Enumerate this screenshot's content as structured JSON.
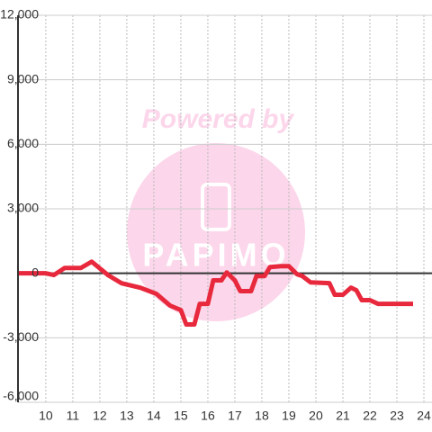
{
  "chart_data": {
    "type": "line",
    "watermark": {
      "text": "Powered by",
      "logo": "PAPIMO"
    },
    "x": [
      9.0,
      10.0,
      10.3,
      10.7,
      11.3,
      11.7,
      12.3,
      12.8,
      13.5,
      14.1,
      14.6,
      15.0,
      15.2,
      15.5,
      15.7,
      16.0,
      16.2,
      16.5,
      16.7,
      17.0,
      17.2,
      17.6,
      17.8,
      18.1,
      18.3,
      18.7,
      19.0,
      19.3,
      19.5,
      19.8,
      20.5,
      20.7,
      21.0,
      21.3,
      21.5,
      21.7,
      22.0,
      22.3,
      23.6
    ],
    "series": [
      {
        "name": "value",
        "color": "#e8283c",
        "values": [
          0,
          0,
          -80,
          250,
          250,
          540,
          -80,
          -460,
          -670,
          -960,
          -1500,
          -1710,
          -2380,
          -2380,
          -1420,
          -1420,
          -330,
          -330,
          40,
          -330,
          -830,
          -830,
          -130,
          -130,
          290,
          330,
          330,
          -40,
          -130,
          -420,
          -460,
          -1000,
          -1000,
          -670,
          -790,
          -1250,
          -1250,
          -1420,
          -1420
        ]
      }
    ],
    "xlim": [
      8.97,
      24.3
    ],
    "xticks": [
      10,
      11,
      12,
      13,
      14,
      15,
      16,
      17,
      18,
      19,
      20,
      21,
      22,
      23,
      24
    ],
    "ylim": [
      -6000,
      12000
    ],
    "yticks": [
      {
        "value": -6000,
        "label": "-6,000"
      },
      {
        "value": -3000,
        "label": "-3,000"
      },
      0,
      {
        "value": 3000,
        "label": "3,000"
      },
      {
        "value": 6000,
        "label": "6,000"
      },
      {
        "value": 9000,
        "label": "9,000"
      },
      {
        "value": 12000,
        "label": "12,000"
      }
    ],
    "grid": true
  }
}
